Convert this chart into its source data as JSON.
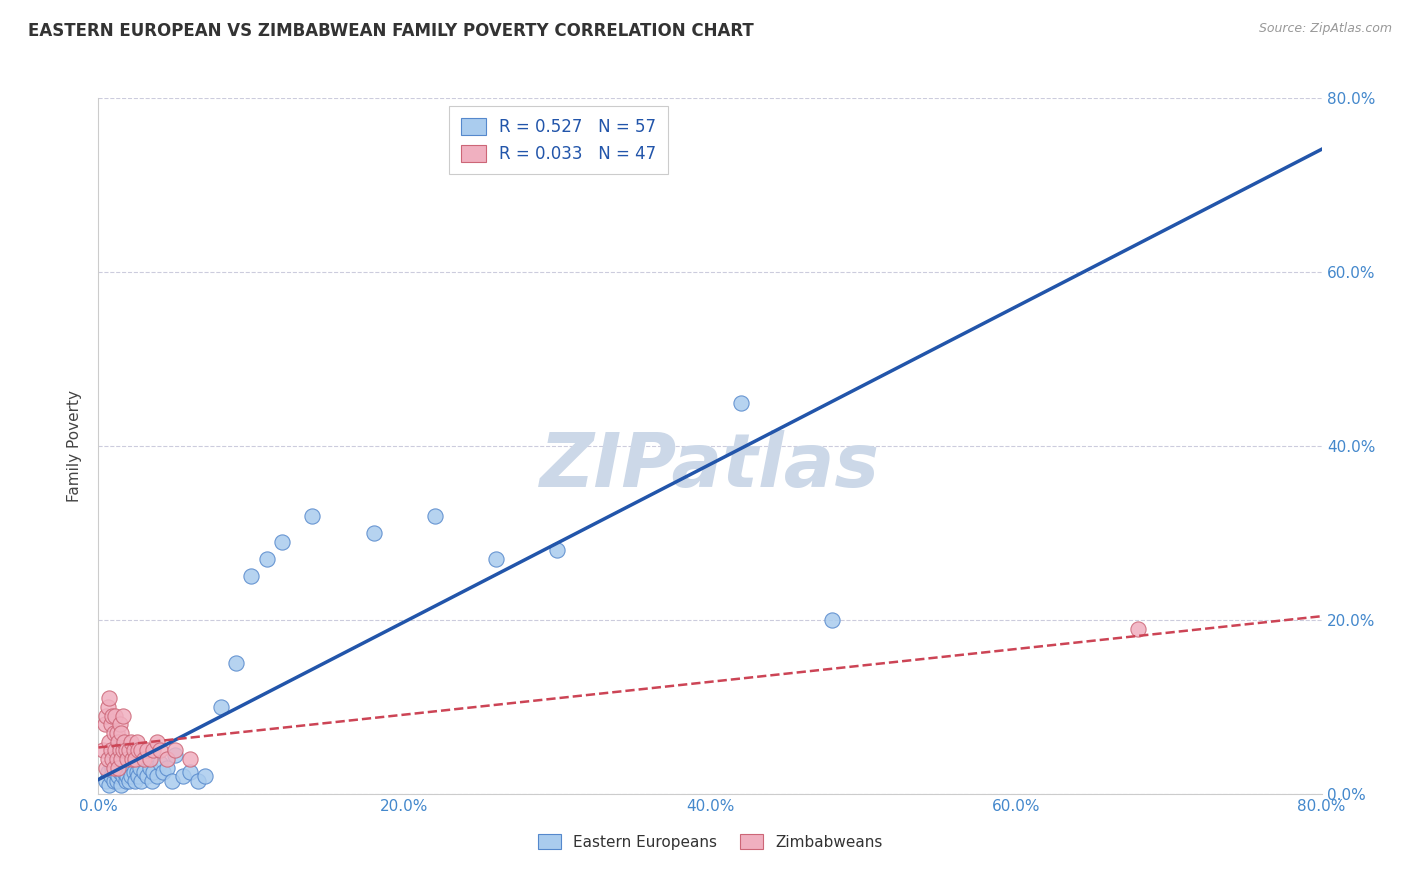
{
  "title": "EASTERN EUROPEAN VS ZIMBABWEAN FAMILY POVERTY CORRELATION CHART",
  "source": "Source: ZipAtlas.com",
  "ylabel": "Family Poverty",
  "xlim": [
    0,
    0.8
  ],
  "ylim": [
    0,
    0.8
  ],
  "xticks": [
    0.0,
    0.2,
    0.4,
    0.6,
    0.8
  ],
  "yticks": [
    0.0,
    0.2,
    0.4,
    0.6,
    0.8
  ],
  "xtick_labels": [
    "0.0%",
    "20.0%",
    "40.0%",
    "60.0%",
    "80.0%"
  ],
  "ytick_labels": [
    "0.0%",
    "20.0%",
    "40.0%",
    "60.0%",
    "80.0%"
  ],
  "blue_fill_color": "#aaccee",
  "blue_edge_color": "#5588cc",
  "pink_fill_color": "#f0b0c0",
  "pink_edge_color": "#cc6677",
  "blue_line_color": "#2255aa",
  "pink_line_color": "#cc4455",
  "legend_R1": "R = 0.527",
  "legend_N1": "N = 57",
  "legend_R2": "R = 0.033",
  "legend_N2": "N = 47",
  "watermark": "ZIPatlas",
  "watermark_color": "#ccd8e8",
  "background_color": "#ffffff",
  "grid_color": "#ccccdd",
  "title_color": "#333333",
  "axis_label_color": "#444444",
  "tick_label_color": "#4488cc",
  "legend_text_color": "#2255aa",
  "blue_scatter_x": [
    0.005,
    0.006,
    0.007,
    0.008,
    0.009,
    0.01,
    0.01,
    0.011,
    0.012,
    0.013,
    0.013,
    0.014,
    0.015,
    0.015,
    0.016,
    0.016,
    0.017,
    0.018,
    0.018,
    0.019,
    0.02,
    0.02,
    0.021,
    0.022,
    0.023,
    0.024,
    0.025,
    0.026,
    0.027,
    0.028,
    0.03,
    0.032,
    0.034,
    0.035,
    0.036,
    0.038,
    0.04,
    0.042,
    0.045,
    0.048,
    0.05,
    0.055,
    0.06,
    0.065,
    0.07,
    0.08,
    0.09,
    0.1,
    0.11,
    0.12,
    0.14,
    0.18,
    0.22,
    0.26,
    0.3,
    0.42,
    0.48
  ],
  "blue_scatter_y": [
    0.015,
    0.025,
    0.01,
    0.02,
    0.03,
    0.015,
    0.04,
    0.025,
    0.015,
    0.02,
    0.035,
    0.025,
    0.01,
    0.03,
    0.02,
    0.04,
    0.025,
    0.015,
    0.03,
    0.02,
    0.015,
    0.03,
    0.02,
    0.04,
    0.025,
    0.015,
    0.025,
    0.02,
    0.03,
    0.015,
    0.025,
    0.02,
    0.03,
    0.015,
    0.025,
    0.02,
    0.035,
    0.025,
    0.03,
    0.015,
    0.045,
    0.02,
    0.025,
    0.015,
    0.02,
    0.1,
    0.15,
    0.25,
    0.27,
    0.29,
    0.32,
    0.3,
    0.32,
    0.27,
    0.28,
    0.45,
    0.2
  ],
  "pink_scatter_x": [
    0.003,
    0.004,
    0.005,
    0.005,
    0.006,
    0.006,
    0.007,
    0.007,
    0.008,
    0.008,
    0.009,
    0.009,
    0.01,
    0.01,
    0.011,
    0.011,
    0.012,
    0.012,
    0.013,
    0.013,
    0.014,
    0.014,
    0.015,
    0.015,
    0.016,
    0.016,
    0.017,
    0.018,
    0.019,
    0.02,
    0.021,
    0.022,
    0.023,
    0.024,
    0.025,
    0.026,
    0.028,
    0.03,
    0.032,
    0.034,
    0.036,
    0.038,
    0.04,
    0.045,
    0.05,
    0.06,
    0.68
  ],
  "pink_scatter_y": [
    0.05,
    0.08,
    0.03,
    0.09,
    0.04,
    0.1,
    0.06,
    0.11,
    0.05,
    0.08,
    0.04,
    0.09,
    0.03,
    0.07,
    0.05,
    0.09,
    0.04,
    0.07,
    0.03,
    0.06,
    0.05,
    0.08,
    0.04,
    0.07,
    0.05,
    0.09,
    0.06,
    0.05,
    0.04,
    0.05,
    0.06,
    0.04,
    0.05,
    0.04,
    0.06,
    0.05,
    0.05,
    0.04,
    0.05,
    0.04,
    0.05,
    0.06,
    0.05,
    0.04,
    0.05,
    0.04,
    0.19
  ]
}
